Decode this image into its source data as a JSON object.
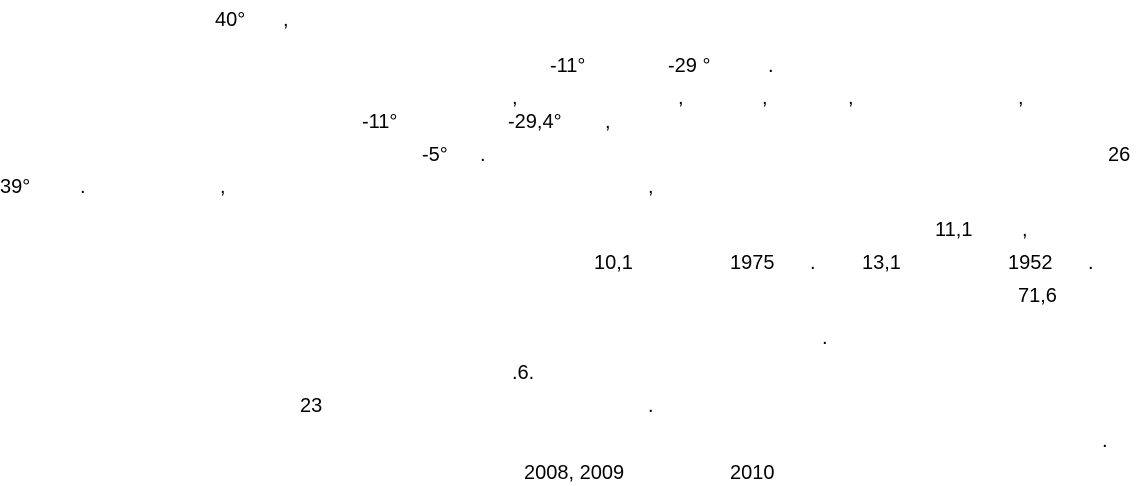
{
  "lines": [
    [
      "40°",
      ","
    ],
    [
      "-11°",
      "-29 °",
      "."
    ],
    [
      ",",
      ",",
      ",",
      ",",
      ","
    ],
    [
      "-11°",
      "-29,4°",
      ","
    ],
    [
      "-5°",
      ".",
      "26"
    ],
    [
      "39°",
      ".",
      ",",
      ","
    ],
    [
      "11,1",
      ","
    ],
    [
      "10,1",
      "1975",
      ".",
      "13,1",
      "1952",
      "."
    ],
    [
      "71,6"
    ],
    [
      "."
    ],
    [
      ".6."
    ],
    [
      "23",
      "."
    ],
    [
      "."
    ],
    [
      "2008, 2009",
      "2010"
    ]
  ]
}
